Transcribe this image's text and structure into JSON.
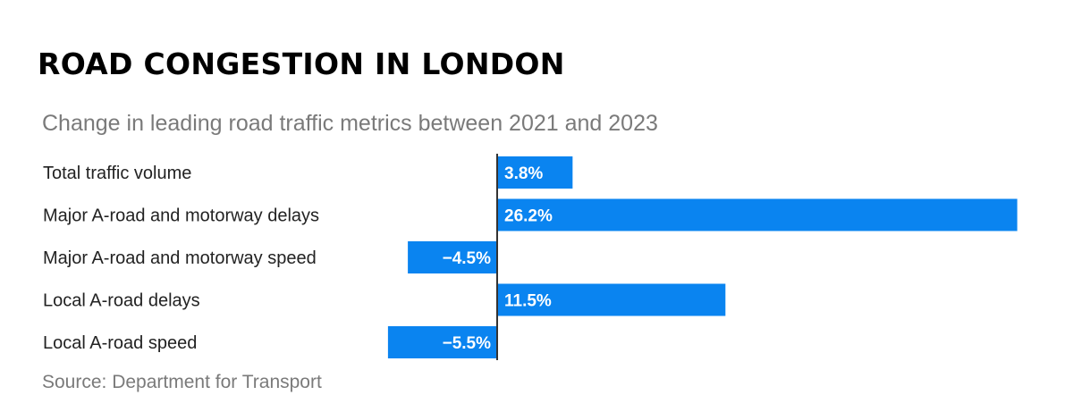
{
  "chart_data": {
    "type": "bar",
    "orientation": "horizontal",
    "title": "ROAD CONGESTION IN LONDON",
    "subtitle": "Change in leading road traffic metrics between 2021 and 2023",
    "source": "Source: Department for Transport",
    "categories": [
      "Total traffic volume",
      "Major A-road and motorway delays",
      "Major A-road and motorway speed",
      "Local A-road delays",
      "Local A-road speed"
    ],
    "values": [
      3.8,
      26.2,
      -4.5,
      11.5,
      -5.5
    ],
    "labels": [
      "3.8%",
      "26.2%",
      "−4.5%",
      "11.5%",
      "−5.5%"
    ],
    "unit": "%",
    "xlim": [
      -5.5,
      26.2
    ],
    "grid": false,
    "bar_color": "#0a84f0",
    "axis_color": "#333333"
  }
}
